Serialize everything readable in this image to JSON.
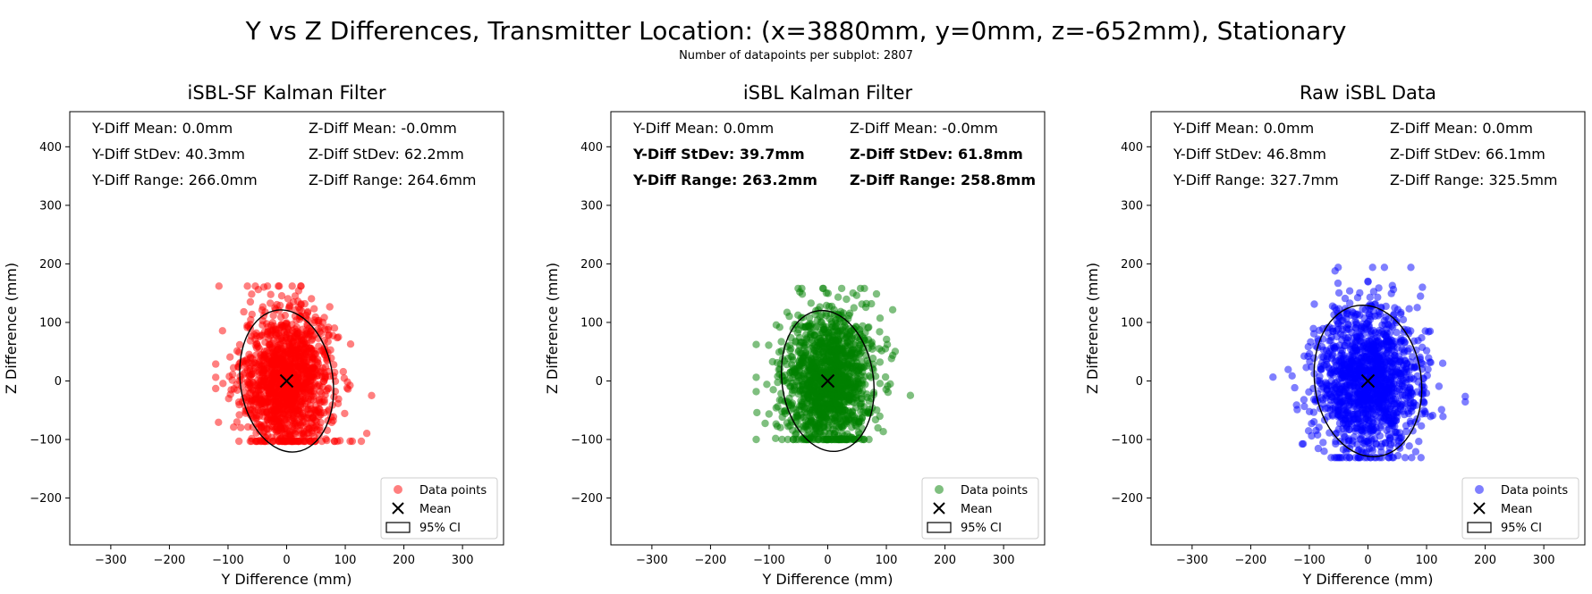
{
  "figure": {
    "title": "Y vs Z Differences, Transmitter Location: (x=3880mm, y=0mm, z=-652mm), Stationary",
    "subtitle": "Number of datapoints per subplot: 2807"
  },
  "chart_data": [
    {
      "type": "scatter",
      "title": "iSBL-SF Kalman Filter",
      "xlabel": "Y Difference (mm)",
      "ylabel": "Z Difference (mm)",
      "xlim": [
        -370,
        370
      ],
      "ylim": [
        -280,
        460
      ],
      "xticks": [
        "−300",
        "−200",
        "−100",
        "0",
        "100",
        "200",
        "300"
      ],
      "yticks": [
        "−200",
        "−100",
        "0",
        "100",
        "200",
        "300",
        "400"
      ],
      "color": "#ff0000",
      "stats": {
        "y_mean": "Y-Diff Mean: 0.0mm",
        "z_mean": "Z-Diff Mean: -0.0mm",
        "y_std": "Y-Diff StDev: 40.3mm",
        "z_std": "Z-Diff StDev: 62.2mm",
        "y_range": "Y-Diff Range: 266.0mm",
        "z_range": "Z-Diff Range: 264.6mm",
        "bold_rows": []
      },
      "point_spread": {
        "y_std": 40.3,
        "z_std": 62.2,
        "y_range": [
          -121,
          145
        ],
        "z_range": [
          -103,
          162
        ]
      },
      "mean": {
        "y": 0.0,
        "z": 0.0
      },
      "ci_ellipse": {
        "semi_major": 122,
        "semi_minor": 79,
        "tilt_deg": -8
      },
      "legend": {
        "position": "lower-right",
        "points": "Data points",
        "mean": "Mean",
        "ci": "95% CI"
      }
    },
    {
      "type": "scatter",
      "title": "iSBL Kalman Filter",
      "xlabel": "Y Difference (mm)",
      "ylabel": "Z Difference (mm)",
      "xlim": [
        -370,
        370
      ],
      "ylim": [
        -280,
        460
      ],
      "xticks": [
        "−300",
        "−200",
        "−100",
        "0",
        "100",
        "200",
        "300"
      ],
      "yticks": [
        "−200",
        "−100",
        "0",
        "100",
        "200",
        "300",
        "400"
      ],
      "color": "#008000",
      "stats": {
        "y_mean": "Y-Diff Mean: 0.0mm",
        "z_mean": "Z-Diff Mean: -0.0mm",
        "y_std": "Y-Diff StDev: 39.7mm",
        "z_std": "Z-Diff StDev: 61.8mm",
        "y_range": "Y-Diff Range: 263.2mm",
        "z_range": "Z-Diff Range: 258.8mm",
        "bold_rows": [
          1,
          2
        ]
      },
      "point_spread": {
        "y_std": 39.7,
        "z_std": 61.8,
        "y_range": [
          -122,
          141
        ],
        "z_range": [
          -100,
          158
        ]
      },
      "mean": {
        "y": 0.0,
        "z": 0.0
      },
      "ci_ellipse": {
        "semi_major": 121,
        "semi_minor": 78,
        "tilt_deg": -8
      },
      "legend": {
        "position": "lower-right",
        "points": "Data points",
        "mean": "Mean",
        "ci": "95% CI"
      }
    },
    {
      "type": "scatter",
      "title": "Raw iSBL Data",
      "xlabel": "Y Difference (mm)",
      "ylabel": "Z Difference (mm)",
      "xlim": [
        -370,
        370
      ],
      "ylim": [
        -280,
        460
      ],
      "xticks": [
        "−300",
        "−200",
        "−100",
        "0",
        "100",
        "200",
        "300"
      ],
      "yticks": [
        "−200",
        "−100",
        "0",
        "100",
        "200",
        "300",
        "400"
      ],
      "color": "#0000ff",
      "stats": {
        "y_mean": "Y-Diff Mean: 0.0mm",
        "z_mean": "Z-Diff Mean: 0.0mm",
        "y_std": "Y-Diff StDev: 46.8mm",
        "z_std": "Z-Diff StDev: 66.1mm",
        "y_range": "Y-Diff Range: 327.7mm",
        "z_range": "Z-Diff Range: 325.5mm",
        "bold_rows": []
      },
      "point_spread": {
        "y_std": 46.8,
        "z_std": 66.1,
        "y_range": [
          -162,
          166
        ],
        "z_range": [
          -131,
          194
        ]
      },
      "mean": {
        "y": 0.0,
        "z": 0.0
      },
      "ci_ellipse": {
        "semi_major": 130,
        "semi_minor": 91,
        "tilt_deg": -8
      },
      "legend": {
        "position": "lower-right",
        "points": "Data points",
        "mean": "Mean",
        "ci": "95% CI"
      }
    }
  ]
}
